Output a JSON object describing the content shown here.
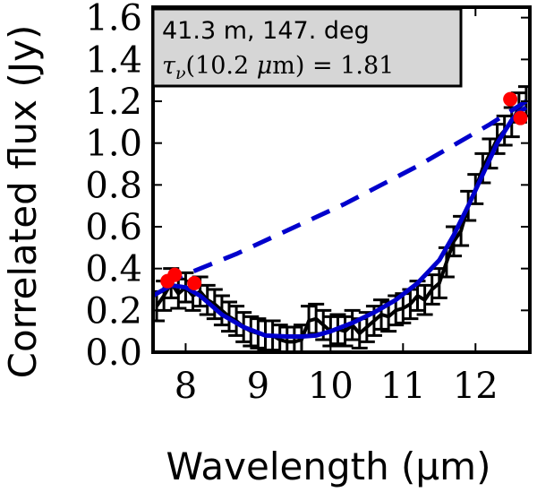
{
  "chart_data": {
    "type": "line",
    "xlabel": "Wavelength (μm)",
    "ylabel": "Correlated flux (Jy)",
    "xlim": [
      7.55,
      12.75
    ],
    "ylim": [
      0.0,
      1.65
    ],
    "xticks": [
      8,
      9,
      10,
      11,
      12
    ],
    "xtick_labels": [
      "8",
      "9",
      "10",
      "11",
      "12"
    ],
    "yticks": [
      0.0,
      0.2,
      0.4,
      0.6,
      0.8,
      1.0,
      1.2,
      1.4,
      1.6
    ],
    "ytick_labels": [
      "0.0",
      "0.2",
      "0.4",
      "0.6",
      "0.8",
      "1.0",
      "1.2",
      "1.4",
      "1.6"
    ],
    "annotation": {
      "line1": "41.3 m, 147. deg",
      "line2": "τν(10.2 μm) = 1.81"
    },
    "series": [
      {
        "style": "errorbar",
        "color": "#000000",
        "x": [
          7.6,
          7.7,
          7.8,
          7.9,
          8.0,
          8.1,
          8.2,
          8.3,
          8.4,
          8.5,
          8.6,
          8.7,
          8.8,
          8.9,
          9.0,
          9.1,
          9.2,
          9.3,
          9.4,
          9.5,
          9.6,
          9.7,
          9.8,
          9.9,
          10.0,
          10.1,
          10.2,
          10.3,
          10.4,
          10.5,
          10.6,
          10.7,
          10.8,
          10.9,
          11.0,
          11.1,
          11.2,
          11.3,
          11.4,
          11.5,
          11.6,
          11.7,
          11.8,
          11.9,
          12.0,
          12.1,
          12.2,
          12.3,
          12.4,
          12.5,
          12.6,
          12.7
        ],
        "y": [
          0.22,
          0.27,
          0.33,
          0.28,
          0.31,
          0.27,
          0.29,
          0.25,
          0.23,
          0.2,
          0.17,
          0.15,
          0.12,
          0.1,
          0.09,
          0.08,
          0.08,
          0.06,
          0.05,
          0.05,
          0.06,
          0.15,
          0.16,
          0.13,
          0.1,
          0.11,
          0.1,
          0.13,
          0.09,
          0.12,
          0.15,
          0.18,
          0.17,
          0.2,
          0.21,
          0.23,
          0.27,
          0.25,
          0.3,
          0.33,
          0.43,
          0.53,
          0.58,
          0.7,
          0.78,
          0.88,
          0.95,
          1.02,
          1.06,
          1.1,
          1.17,
          1.2
        ],
        "error": [
          0.07,
          0.07,
          0.07,
          0.07,
          0.07,
          0.07,
          0.07,
          0.07,
          0.07,
          0.07,
          0.07,
          0.07,
          0.07,
          0.07,
          0.07,
          0.07,
          0.07,
          0.07,
          0.07,
          0.07,
          0.07,
          0.07,
          0.07,
          0.07,
          0.07,
          0.07,
          0.07,
          0.07,
          0.07,
          0.07,
          0.07,
          0.07,
          0.07,
          0.07,
          0.07,
          0.07,
          0.07,
          0.07,
          0.07,
          0.07,
          0.07,
          0.07,
          0.07,
          0.07,
          0.07,
          0.07,
          0.07,
          0.07,
          0.07,
          0.07,
          0.07,
          0.07
        ]
      },
      {
        "style": "solid",
        "color": "#0000cc",
        "x": [
          7.55,
          7.8,
          8.0,
          8.2,
          8.5,
          8.8,
          9.1,
          9.4,
          9.6,
          9.8,
          10.0,
          10.3,
          10.6,
          10.9,
          11.2,
          11.5,
          11.7,
          11.9,
          12.1,
          12.3,
          12.5,
          12.6,
          12.7
        ],
        "y": [
          0.27,
          0.32,
          0.31,
          0.27,
          0.18,
          0.12,
          0.08,
          0.075,
          0.075,
          0.08,
          0.1,
          0.14,
          0.19,
          0.25,
          0.33,
          0.44,
          0.56,
          0.7,
          0.85,
          1.0,
          1.11,
          1.15,
          1.17
        ]
      },
      {
        "style": "dashed",
        "color": "#0000cc",
        "x": [
          7.7,
          8.2,
          8.7,
          9.2,
          9.7,
          10.2,
          10.7,
          11.2,
          11.7,
          12.2,
          12.7
        ],
        "y": [
          0.33,
          0.4,
          0.47,
          0.55,
          0.63,
          0.71,
          0.8,
          0.89,
          0.99,
          1.09,
          1.2
        ]
      },
      {
        "style": "markers",
        "color": "#ff0000",
        "x": [
          7.75,
          7.85,
          8.12,
          12.48,
          12.62
        ],
        "y": [
          0.34,
          0.37,
          0.33,
          1.21,
          1.12
        ]
      }
    ]
  }
}
